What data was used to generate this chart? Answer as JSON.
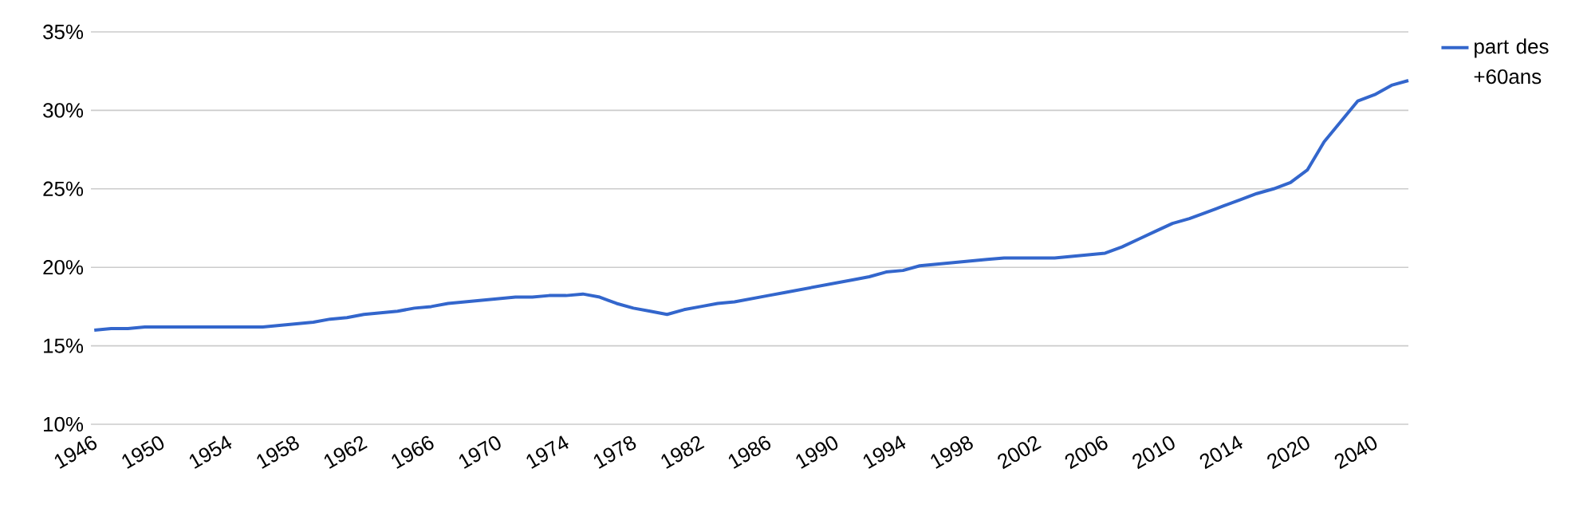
{
  "chart_data": {
    "type": "line",
    "categories": [
      "1946",
      null,
      null,
      null,
      "1950",
      null,
      null,
      null,
      "1954",
      null,
      null,
      null,
      "1958",
      null,
      null,
      null,
      "1962",
      null,
      null,
      null,
      "1966",
      null,
      null,
      null,
      "1970",
      null,
      null,
      null,
      "1974",
      null,
      null,
      null,
      "1978",
      null,
      null,
      null,
      "1982",
      null,
      null,
      null,
      "1986",
      null,
      null,
      null,
      "1990",
      null,
      null,
      null,
      "1994",
      null,
      null,
      null,
      "1998",
      null,
      null,
      null,
      "2002",
      null,
      null,
      null,
      "2006",
      null,
      null,
      null,
      "2010",
      null,
      null,
      null,
      "2014",
      null,
      null,
      null,
      "2020",
      null,
      null,
      null,
      "2040",
      null,
      null
    ],
    "series": [
      {
        "name": "part des +60ans",
        "color": "#3366cc",
        "values": [
          16.0,
          16.1,
          16.1,
          16.2,
          16.2,
          16.2,
          16.2,
          16.2,
          16.2,
          16.2,
          16.2,
          16.3,
          16.4,
          16.5,
          16.7,
          16.8,
          17.0,
          17.1,
          17.2,
          17.4,
          17.5,
          17.7,
          17.8,
          17.9,
          18.0,
          18.1,
          18.1,
          18.2,
          18.2,
          18.3,
          18.1,
          17.7,
          17.4,
          17.2,
          17.0,
          17.3,
          17.5,
          17.7,
          17.8,
          18.0,
          18.2,
          18.4,
          18.6,
          18.8,
          19.0,
          19.2,
          19.4,
          19.7,
          19.8,
          20.1,
          20.2,
          20.3,
          20.4,
          20.5,
          20.6,
          20.6,
          20.6,
          20.6,
          20.7,
          20.8,
          20.9,
          21.3,
          21.8,
          22.3,
          22.8,
          23.1,
          23.5,
          23.9,
          24.3,
          24.7,
          25.0,
          25.4,
          26.2,
          28.0,
          29.3,
          30.6,
          31.0,
          31.6,
          31.9
        ]
      }
    ],
    "ylim": [
      10,
      35
    ],
    "yticks": [
      {
        "value": 10,
        "label": "10%"
      },
      {
        "value": 15,
        "label": "15%"
      },
      {
        "value": 20,
        "label": "20%"
      },
      {
        "value": 25,
        "label": "25%"
      },
      {
        "value": 30,
        "label": "30%"
      },
      {
        "value": 35,
        "label": "35%"
      }
    ],
    "grid": "y",
    "legend": "top right",
    "marker": "none",
    "line_style": "solid"
  }
}
